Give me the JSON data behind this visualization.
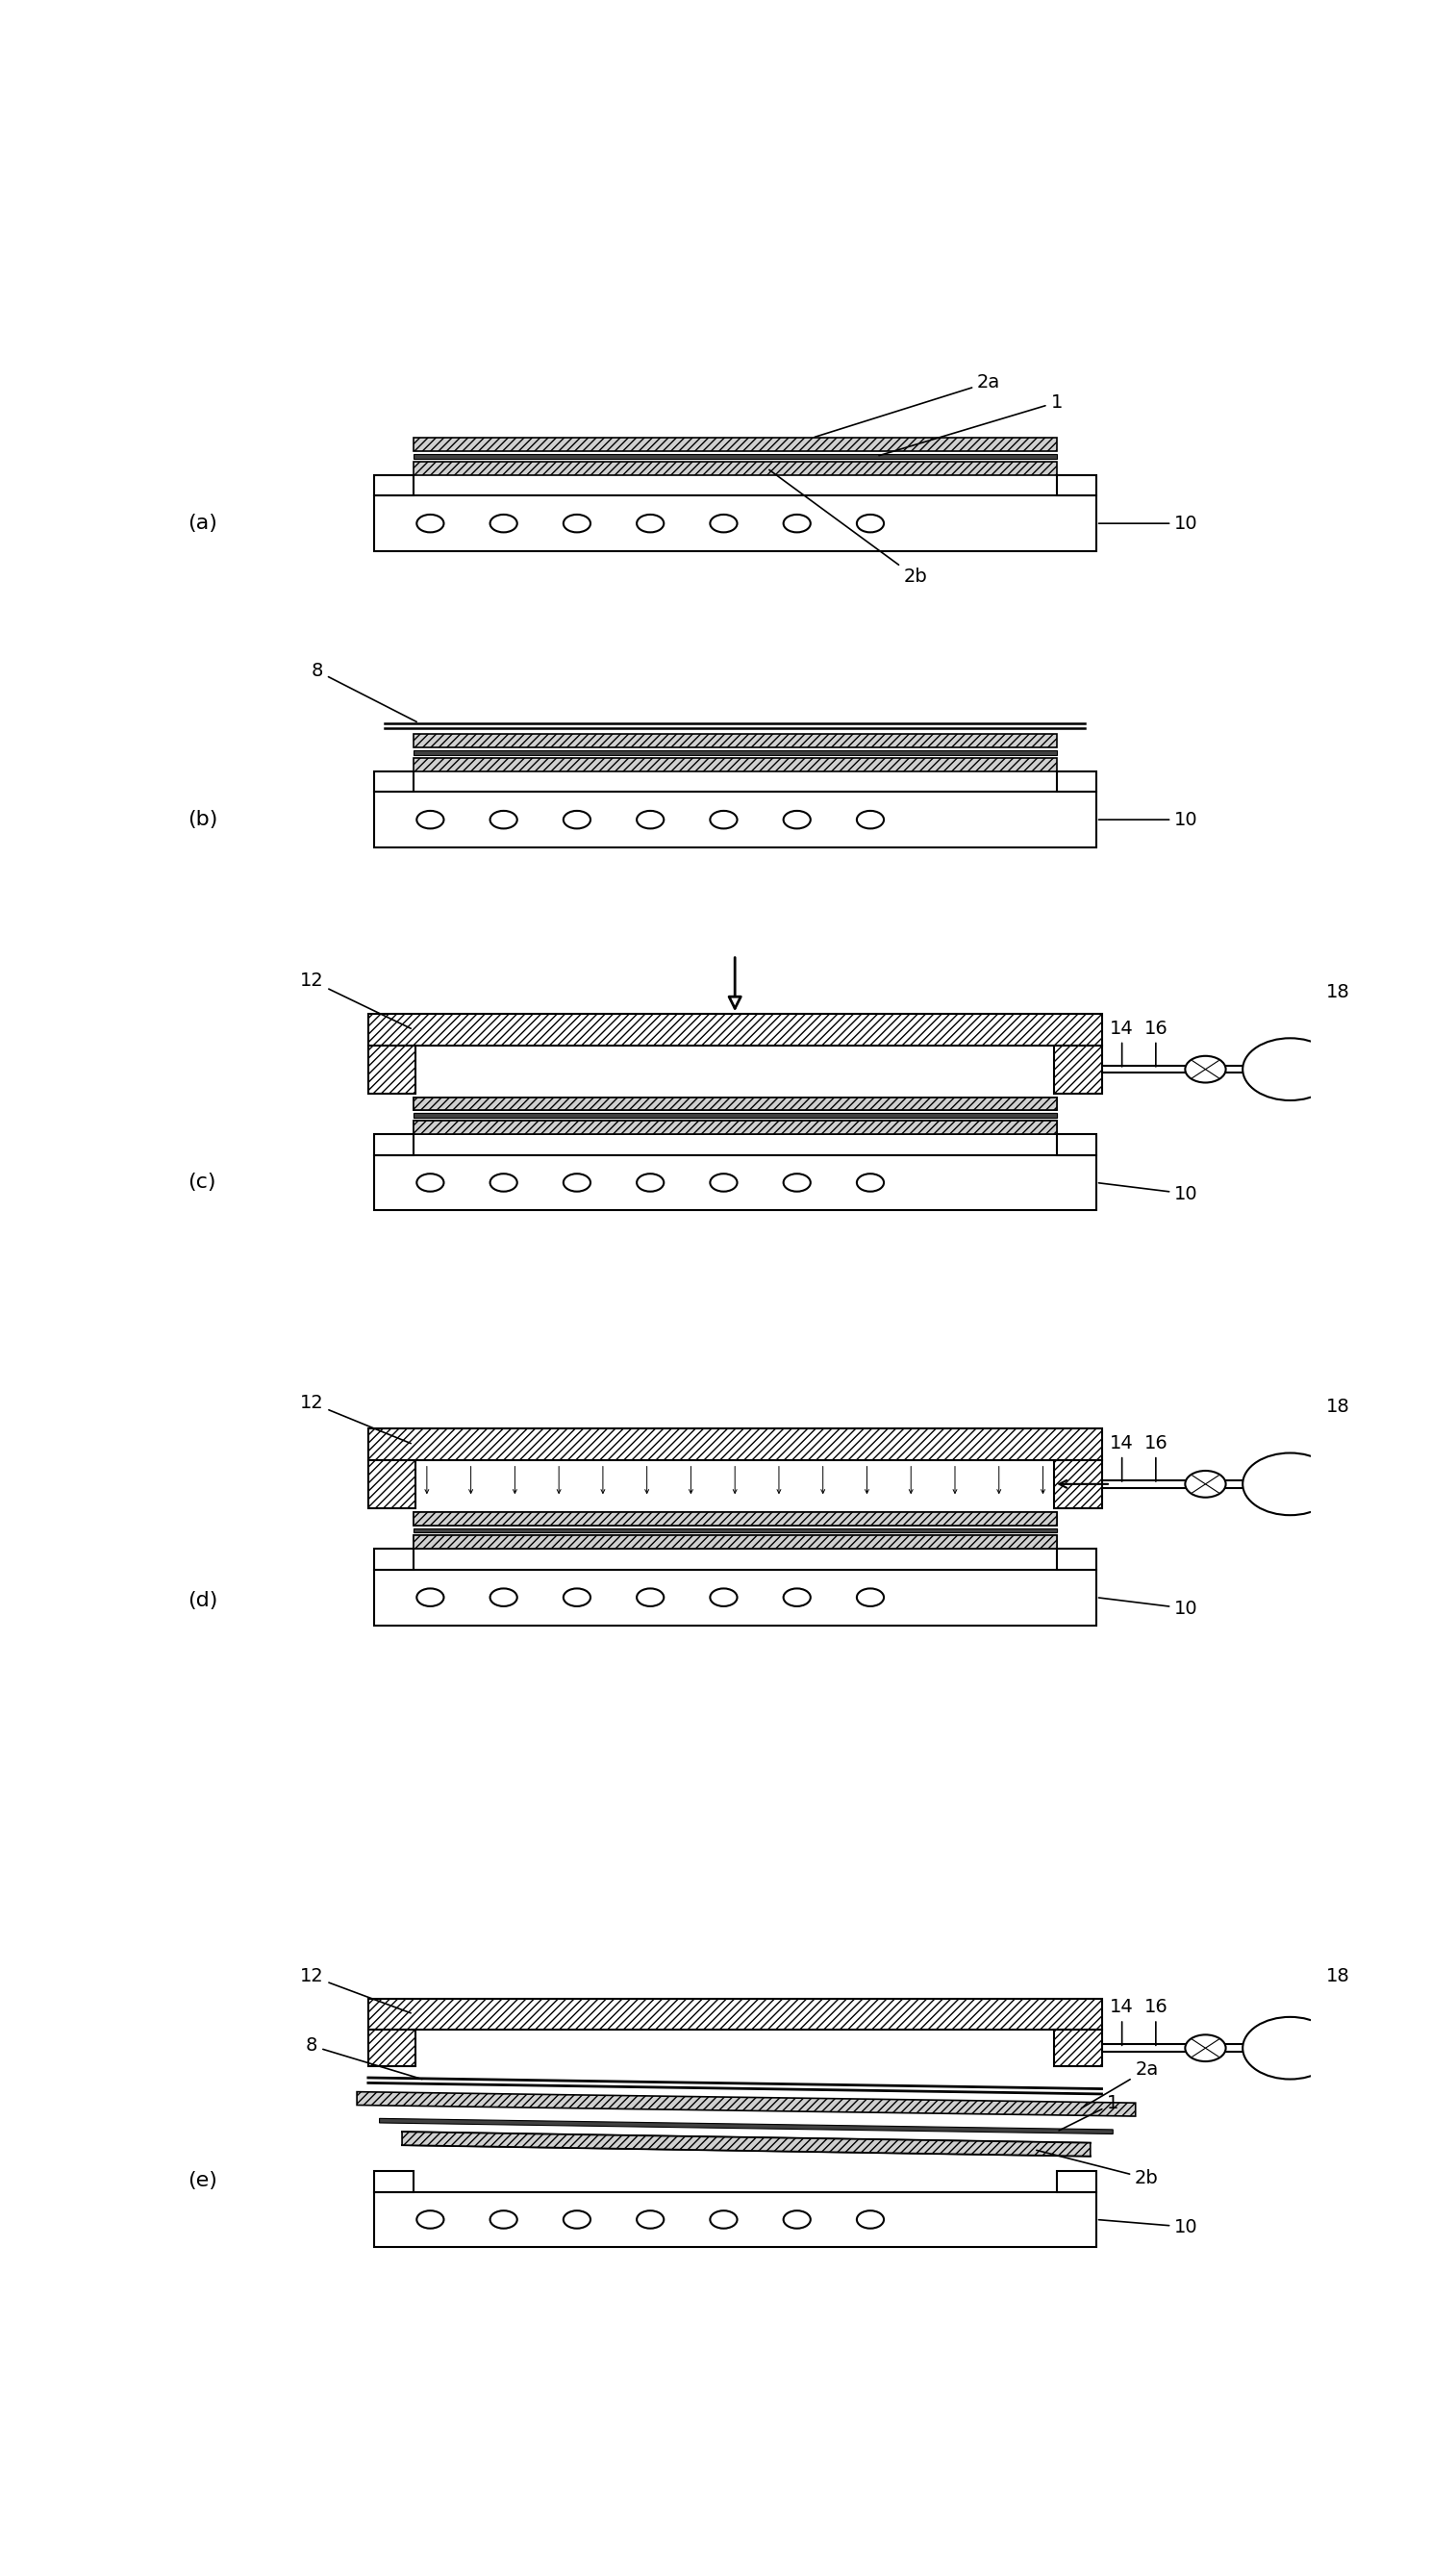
{
  "fig_width": 15.14,
  "fig_height": 26.77,
  "bg_color": "#ffffff",
  "line_color": "#000000",
  "panel_labels": [
    "(a)",
    "(b)",
    "(c)",
    "(d)",
    "(e)"
  ],
  "die_hatch": "////",
  "film_hatch": "////",
  "lw_main": 1.5,
  "lw_thin": 0.8,
  "fontsize_label": 14,
  "fontsize_panel": 16,
  "xlim": [
    0,
    10
  ],
  "ylim": [
    0,
    26.77
  ],
  "circle_r": 0.12,
  "valve_r": 0.18,
  "cyl_r": 0.42
}
